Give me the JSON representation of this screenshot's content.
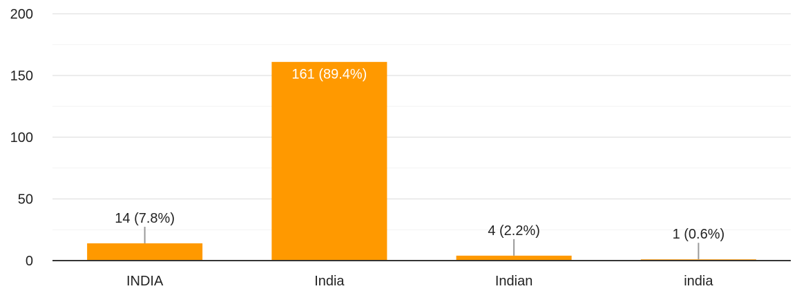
{
  "chart_data": {
    "type": "bar",
    "categories": [
      "INDIA",
      "India",
      "Indian",
      "india"
    ],
    "values": [
      14,
      161,
      4,
      1
    ],
    "data_labels": [
      "14 (7.8%)",
      "161 (89.4%)",
      "4 (2.2%)",
      "1 (0.6%)"
    ],
    "ylim": [
      0,
      200
    ],
    "yticks": [
      "0",
      "50",
      "100",
      "150",
      "200"
    ],
    "title": "",
    "xlabel": "",
    "ylabel": "",
    "grid": true,
    "legend": "none",
    "colors": {
      "bar": "#FF9900",
      "grid_major": "#E6E6E6",
      "grid_minor": "#F3F3F3",
      "axis": "#333333",
      "leader_line": "#999999",
      "text": "#222222",
      "label_inside": "#FFFFFF"
    }
  }
}
